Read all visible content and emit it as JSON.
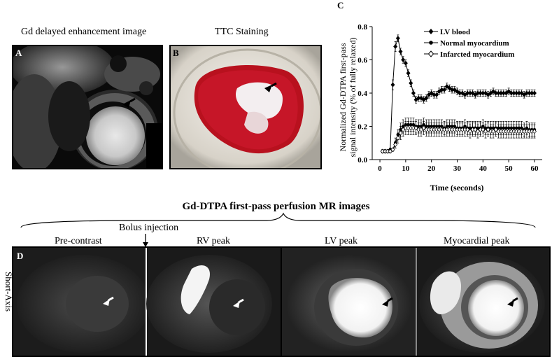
{
  "panel_a": {
    "letter": "A",
    "title": "Gd delayed enhancement image"
  },
  "panel_b": {
    "letter": "B",
    "title": "TTC Staining"
  },
  "panel_c": {
    "letter": "C",
    "chart_data": {
      "type": "line",
      "xlabel": "Time (seconds)",
      "ylabel_line1": "Normalized Gd-DTPA first-pass",
      "ylabel_line2": "signal intensity (% of fully relaxed)",
      "xlim": [
        -3,
        63
      ],
      "ylim": [
        0,
        0.8
      ],
      "xticks": [
        0,
        10,
        20,
        30,
        40,
        50,
        60
      ],
      "yticks": [
        0.0,
        0.2,
        0.4,
        0.6,
        0.8
      ],
      "legend_position": "top-right",
      "series": [
        {
          "name": "LV blood",
          "marker": "filled-diamond",
          "x": [
            1,
            2,
            3,
            4,
            5,
            6,
            7,
            8,
            9,
            10,
            11,
            12,
            13,
            14,
            15,
            16,
            17,
            18,
            19,
            20,
            21,
            22,
            23,
            24,
            25,
            26,
            27,
            28,
            29,
            30,
            31,
            32,
            33,
            34,
            35,
            36,
            37,
            38,
            39,
            40,
            41,
            42,
            43,
            44,
            45,
            46,
            47,
            48,
            49,
            50,
            51,
            52,
            53,
            54,
            55,
            56,
            57,
            58,
            59,
            60
          ],
          "y": [
            0.05,
            0.05,
            0.05,
            0.06,
            0.45,
            0.68,
            0.73,
            0.65,
            0.6,
            0.58,
            0.52,
            0.46,
            0.4,
            0.36,
            0.37,
            0.37,
            0.36,
            0.37,
            0.39,
            0.4,
            0.39,
            0.39,
            0.41,
            0.42,
            0.42,
            0.44,
            0.43,
            0.42,
            0.42,
            0.41,
            0.4,
            0.4,
            0.39,
            0.4,
            0.4,
            0.4,
            0.39,
            0.4,
            0.4,
            0.4,
            0.4,
            0.39,
            0.4,
            0.41,
            0.4,
            0.4,
            0.4,
            0.4,
            0.4,
            0.41,
            0.4,
            0.4,
            0.4,
            0.4,
            0.4,
            0.39,
            0.4,
            0.4,
            0.4,
            0.4
          ],
          "err": [
            0.01,
            0.01,
            0.01,
            0.01,
            0.03,
            0.03,
            0.02,
            0.02,
            0.02,
            0.02,
            0.02,
            0.02,
            0.02,
            0.02,
            0.02,
            0.02,
            0.02,
            0.02,
            0.02,
            0.02,
            0.02,
            0.02,
            0.02,
            0.02,
            0.02,
            0.02,
            0.02,
            0.02,
            0.02,
            0.02,
            0.02,
            0.02,
            0.02,
            0.02,
            0.02,
            0.02,
            0.02,
            0.02,
            0.02,
            0.02,
            0.02,
            0.02,
            0.02,
            0.02,
            0.02,
            0.02,
            0.02,
            0.02,
            0.02,
            0.02,
            0.02,
            0.02,
            0.02,
            0.02,
            0.02,
            0.02,
            0.02,
            0.02,
            0.02,
            0.02
          ]
        },
        {
          "name": "Normal myocardium",
          "marker": "filled-circle",
          "x": [
            1,
            2,
            3,
            4,
            5,
            6,
            7,
            8,
            9,
            10,
            11,
            12,
            13,
            14,
            15,
            16,
            17,
            18,
            19,
            20,
            21,
            22,
            23,
            24,
            25,
            26,
            27,
            28,
            29,
            30,
            31,
            32,
            33,
            34,
            35,
            36,
            37,
            38,
            39,
            40,
            41,
            42,
            43,
            44,
            45,
            46,
            47,
            48,
            49,
            50,
            51,
            52,
            53,
            54,
            55,
            56,
            57,
            58,
            59,
            60
          ],
          "y": [
            0.05,
            0.05,
            0.05,
            0.05,
            0.06,
            0.1,
            0.15,
            0.18,
            0.2,
            0.21,
            0.21,
            0.21,
            0.21,
            0.2,
            0.2,
            0.2,
            0.21,
            0.2,
            0.2,
            0.2,
            0.2,
            0.2,
            0.2,
            0.2,
            0.19,
            0.2,
            0.2,
            0.2,
            0.2,
            0.19,
            0.19,
            0.19,
            0.2,
            0.19,
            0.19,
            0.19,
            0.19,
            0.19,
            0.19,
            0.2,
            0.19,
            0.19,
            0.19,
            0.19,
            0.19,
            0.19,
            0.19,
            0.19,
            0.19,
            0.19,
            0.19,
            0.19,
            0.19,
            0.19,
            0.19,
            0.18,
            0.19,
            0.18,
            0.18,
            0.18
          ],
          "err": [
            0.01,
            0.01,
            0.01,
            0.01,
            0.01,
            0.03,
            0.03,
            0.04,
            0.04,
            0.04,
            0.04,
            0.04,
            0.04,
            0.04,
            0.04,
            0.04,
            0.04,
            0.04,
            0.04,
            0.04,
            0.04,
            0.04,
            0.04,
            0.04,
            0.04,
            0.04,
            0.04,
            0.04,
            0.04,
            0.04,
            0.04,
            0.04,
            0.04,
            0.04,
            0.04,
            0.04,
            0.04,
            0.04,
            0.04,
            0.04,
            0.04,
            0.04,
            0.04,
            0.04,
            0.04,
            0.04,
            0.04,
            0.04,
            0.04,
            0.04,
            0.04,
            0.04,
            0.04,
            0.04,
            0.04,
            0.04,
            0.04,
            0.04,
            0.04,
            0.04
          ]
        },
        {
          "name": "Infarcted myocardium",
          "marker": "open-diamond",
          "x": [
            1,
            2,
            3,
            4,
            5,
            6,
            7,
            8,
            9,
            10,
            11,
            12,
            13,
            14,
            15,
            16,
            17,
            18,
            19,
            20,
            21,
            22,
            23,
            24,
            25,
            26,
            27,
            28,
            29,
            30,
            31,
            32,
            33,
            34,
            35,
            36,
            37,
            38,
            39,
            40,
            41,
            42,
            43,
            44,
            45,
            46,
            47,
            48,
            49,
            50,
            51,
            52,
            53,
            54,
            55,
            56,
            57,
            58,
            59,
            60
          ],
          "y": [
            0.05,
            0.05,
            0.05,
            0.05,
            0.06,
            0.09,
            0.13,
            0.16,
            0.18,
            0.19,
            0.19,
            0.19,
            0.19,
            0.19,
            0.18,
            0.18,
            0.19,
            0.18,
            0.18,
            0.18,
            0.18,
            0.18,
            0.18,
            0.18,
            0.18,
            0.18,
            0.18,
            0.18,
            0.18,
            0.18,
            0.18,
            0.18,
            0.18,
            0.18,
            0.17,
            0.18,
            0.18,
            0.17,
            0.18,
            0.18,
            0.17,
            0.18,
            0.17,
            0.17,
            0.18,
            0.17,
            0.17,
            0.17,
            0.17,
            0.17,
            0.17,
            0.17,
            0.17,
            0.17,
            0.17,
            0.17,
            0.17,
            0.17,
            0.17,
            0.17
          ],
          "err": [
            0.01,
            0.01,
            0.01,
            0.01,
            0.01,
            0.02,
            0.03,
            0.04,
            0.04,
            0.04,
            0.04,
            0.04,
            0.04,
            0.04,
            0.04,
            0.04,
            0.04,
            0.04,
            0.04,
            0.04,
            0.04,
            0.04,
            0.04,
            0.04,
            0.04,
            0.04,
            0.04,
            0.04,
            0.04,
            0.04,
            0.04,
            0.04,
            0.04,
            0.04,
            0.04,
            0.04,
            0.04,
            0.04,
            0.04,
            0.04,
            0.04,
            0.04,
            0.04,
            0.04,
            0.04,
            0.04,
            0.04,
            0.04,
            0.04,
            0.04,
            0.04,
            0.04,
            0.04,
            0.04,
            0.04,
            0.04,
            0.04,
            0.04,
            0.04,
            0.04
          ]
        }
      ]
    }
  },
  "panel_d": {
    "letter": "D",
    "group_title": "Gd-DTPA first-pass perfusion MR images",
    "bolus_label": "Bolus injection",
    "row_label": "Short-Axis",
    "frames": [
      "Pre-contrast",
      "RV peak",
      "LV peak",
      "Myocardial peak"
    ]
  }
}
